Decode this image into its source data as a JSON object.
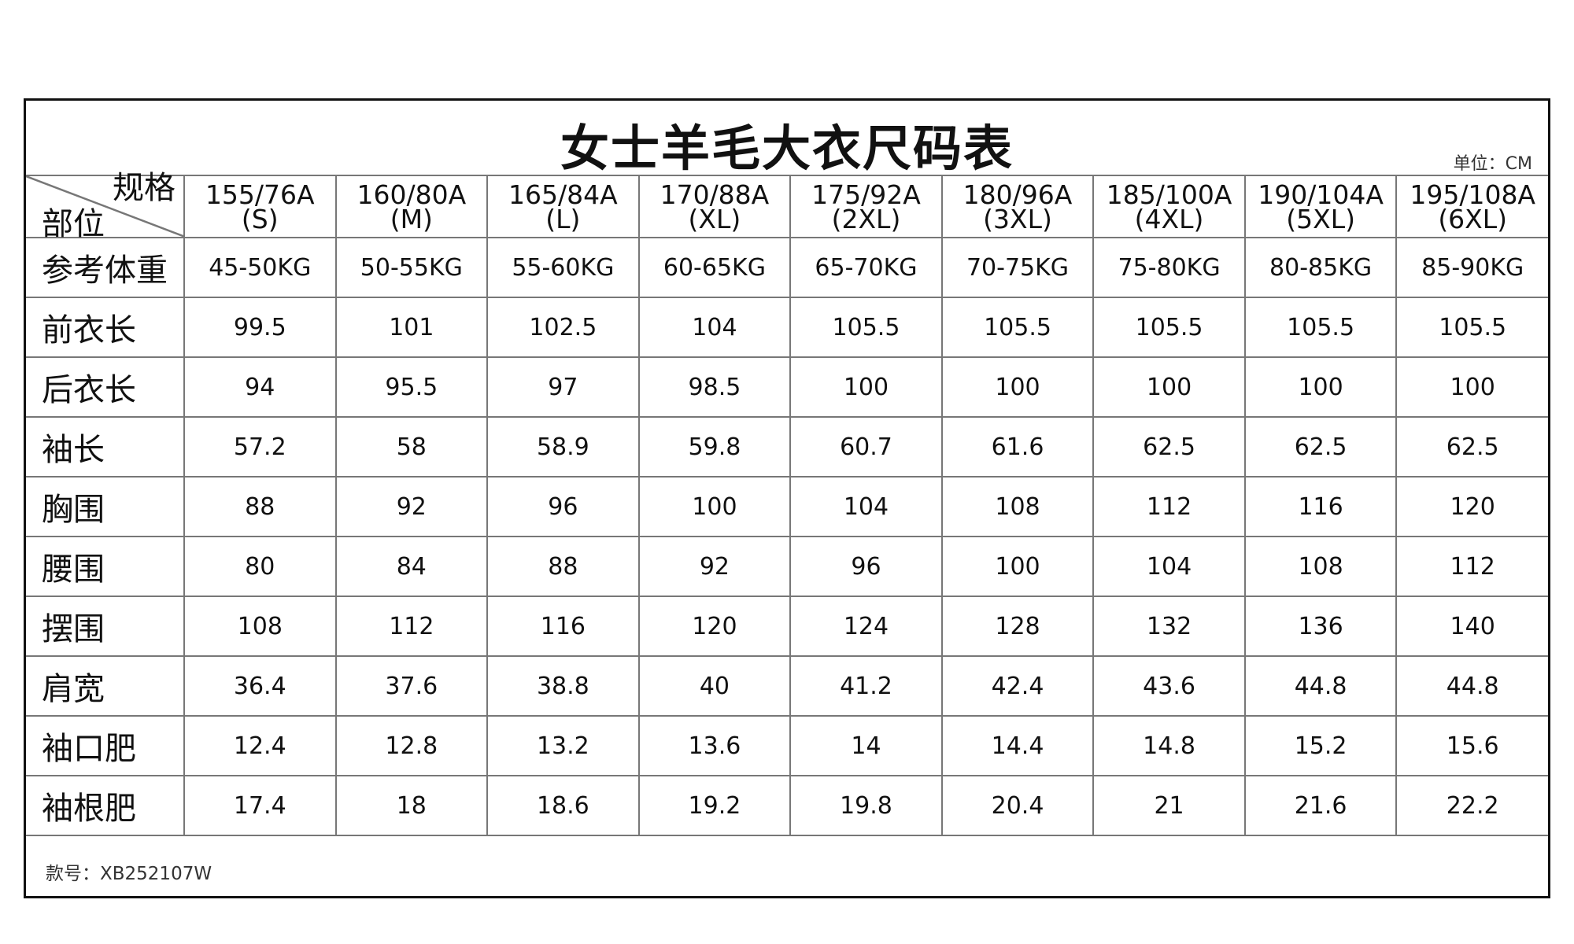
{
  "title": "女士羊毛大衣尺码表",
  "unit": "单位：CM",
  "corner": {
    "top": "规格",
    "bottom": "部位"
  },
  "sizes": [
    [
      "155/76A",
      "(S)"
    ],
    [
      "160/80A",
      "(M)"
    ],
    [
      "165/84A",
      "(L)"
    ],
    [
      "170/88A",
      "(XL)"
    ],
    [
      "175/92A",
      "(2XL)"
    ],
    [
      "180/96A",
      "(3XL)"
    ],
    [
      "185/100A",
      "(4XL)"
    ],
    [
      "190/104A",
      "(5XL)"
    ],
    [
      "195/108A",
      "(6XL)"
    ]
  ],
  "rows": [
    {
      "label": "参考体重",
      "values": [
        "45-50KG",
        "50-55KG",
        "55-60KG",
        "60-65KG",
        "65-70KG",
        "70-75KG",
        "75-80KG",
        "80-85KG",
        "85-90KG"
      ]
    },
    {
      "label": "前衣长",
      "values": [
        "99.5",
        "101",
        "102.5",
        "104",
        "105.5",
        "105.5",
        "105.5",
        "105.5",
        "105.5"
      ]
    },
    {
      "label": "后衣长",
      "values": [
        "94",
        "95.5",
        "97",
        "98.5",
        "100",
        "100",
        "100",
        "100",
        "100"
      ]
    },
    {
      "label": "袖长",
      "values": [
        "57.2",
        "58",
        "58.9",
        "59.8",
        "60.7",
        "61.6",
        "62.5",
        "62.5",
        "62.5"
      ]
    },
    {
      "label": "胸围",
      "values": [
        "88",
        "92",
        "96",
        "100",
        "104",
        "108",
        "112",
        "116",
        "120"
      ]
    },
    {
      "label": "腰围",
      "values": [
        "80",
        "84",
        "88",
        "92",
        "96",
        "100",
        "104",
        "108",
        "112"
      ]
    },
    {
      "label": "摆围",
      "values": [
        "108",
        "112",
        "116",
        "120",
        "124",
        "128",
        "132",
        "136",
        "140"
      ]
    },
    {
      "label": "肩宽",
      "values": [
        "36.4",
        "37.6",
        "38.8",
        "40",
        "41.2",
        "42.4",
        "43.6",
        "44.8",
        "44.8"
      ]
    },
    {
      "label": "袖口肥",
      "values": [
        "12.4",
        "12.8",
        "13.2",
        "13.6",
        "14",
        "14.4",
        "14.8",
        "15.2",
        "15.6"
      ]
    },
    {
      "label": "袖根肥",
      "values": [
        "17.4",
        "18",
        "18.6",
        "19.2",
        "19.8",
        "20.4",
        "21",
        "21.6",
        "22.2"
      ]
    }
  ],
  "footer": "款号：XB252107W"
}
